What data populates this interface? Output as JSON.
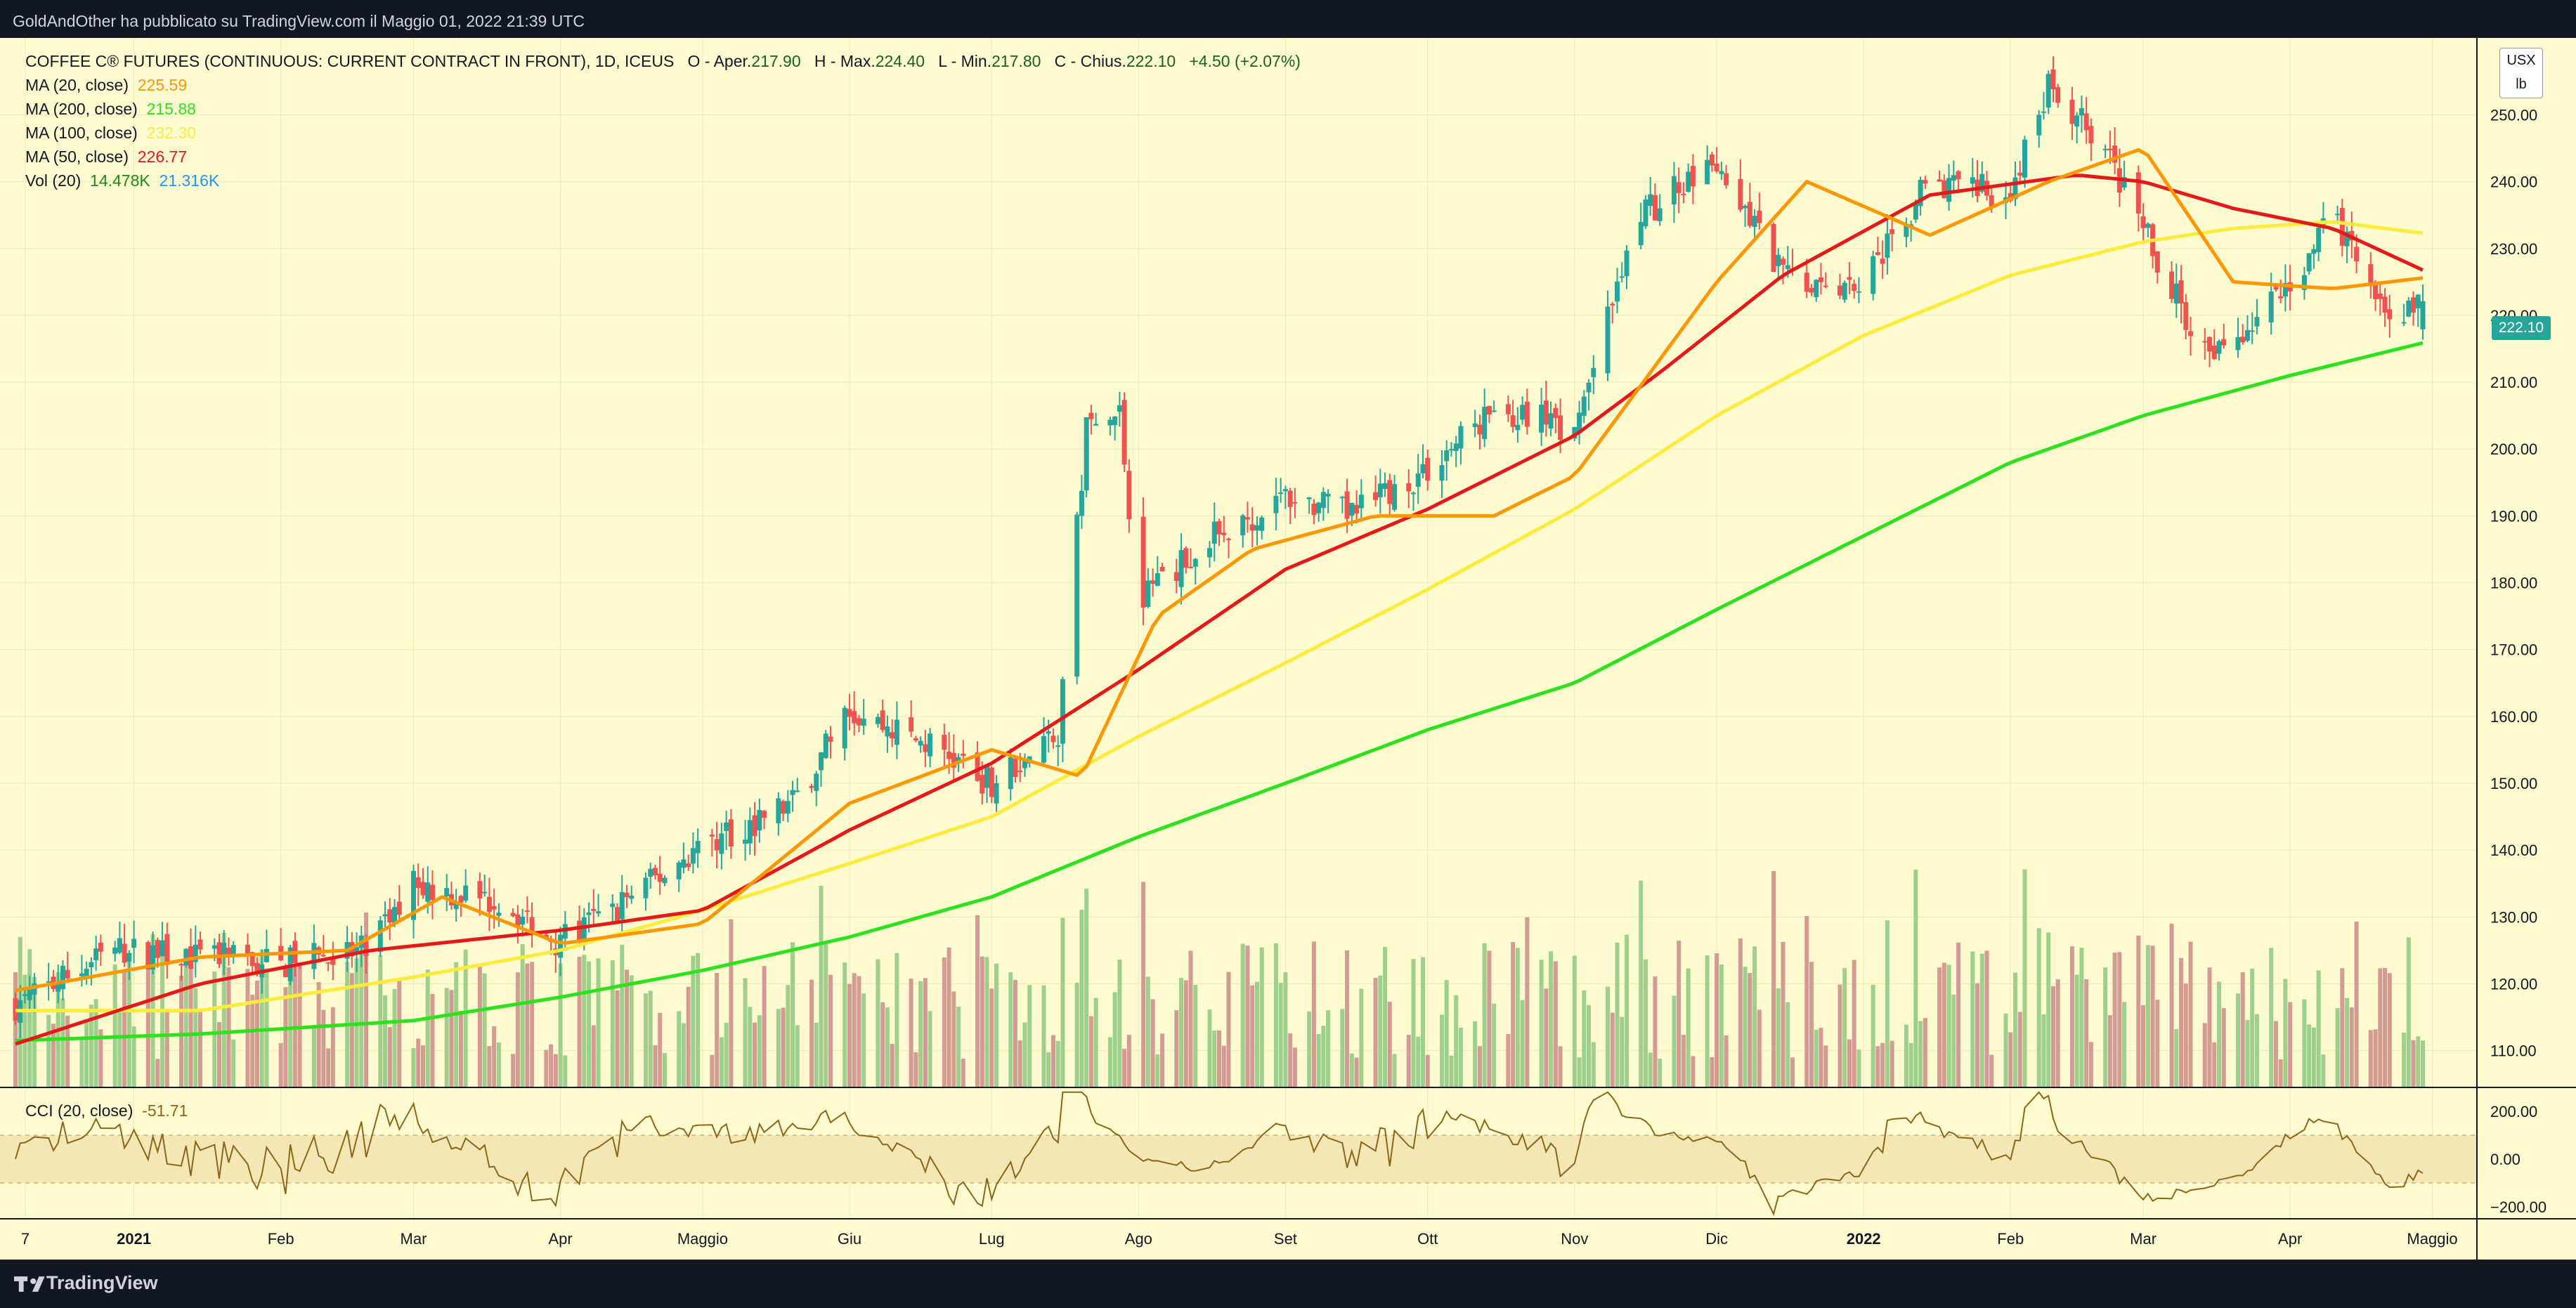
{
  "header": {
    "publisher_line": "GoldAndOther ha pubblicato su TradingView.com il Maggio 01, 2022 21:39 UTC"
  },
  "legend": {
    "symbol": "COFFEE C® FUTURES (CONTINUOUS: CURRENT CONTRACT IN FRONT), 1D, ICEUS",
    "open_label": "O - Aper.",
    "open": "217.90",
    "high_label": "H - Max.",
    "high": "224.40",
    "low_label": "L - Min.",
    "low": "217.80",
    "close_label": "C - Chius.",
    "close": "222.10",
    "change": "+4.50 (+2.07%)",
    "ma20_label": "MA (20, close)",
    "ma20": "225.59",
    "ma200_label": "MA (200, close)",
    "ma200": "215.88",
    "ma100_label": "MA (100, close)",
    "ma100": "232.30",
    "ma50_label": "MA (50, close)",
    "ma50": "226.77",
    "vol_label": "Vol (20)",
    "vol1": "14.478K",
    "vol2": "21.316K"
  },
  "cci": {
    "label": "CCI (20, close)",
    "value": "-51.71"
  },
  "unit": {
    "currency": "USX",
    "measure": "lb"
  },
  "price_tag": "222.10",
  "colors": {
    "background": "#fffbd1",
    "up": "#26a69a",
    "down": "#ef5350",
    "ma20": "#ff9800",
    "ma50": "#e21a1a",
    "ma100": "#ffeb3b",
    "ma200": "#2ee01e",
    "vol_up": "#9fcf8c",
    "vol_down": "#d39c93",
    "cci": "#8d6516"
  },
  "footer": {
    "brand": "TradingView"
  },
  "chart_data": {
    "type": "candlestick",
    "y_axis_ticks": [
      "110.00",
      "120.00",
      "130.00",
      "140.00",
      "150.00",
      "160.00",
      "170.00",
      "180.00",
      "190.00",
      "200.00",
      "210.00",
      "220.00",
      "230.00",
      "240.00",
      "250.00"
    ],
    "ylim": [
      104.5,
      261.5
    ],
    "x_axis_ticks": [
      "7",
      "2021",
      "Feb",
      "Mar",
      "Apr",
      "Maggio",
      "Giu",
      "Lug",
      "Ago",
      "Set",
      "Ott",
      "Nov",
      "Dic",
      "2022",
      "Feb",
      "Mar",
      "Apr",
      "Maggio"
    ],
    "cci_ticks": [
      "200.00",
      "0.00",
      "−200.00"
    ],
    "cci_range": [
      -250,
      300
    ],
    "price_anchors": {
      "x": [
        "2020-12-07",
        "2020-12-28",
        "2021-01-15",
        "2021-02-01",
        "2021-02-20",
        "2021-03-01",
        "2021-03-20",
        "2021-04-01",
        "2021-04-20",
        "2021-05-01",
        "2021-05-20",
        "2021-06-01",
        "2021-06-20",
        "2021-07-01",
        "2021-07-15",
        "2021-07-21",
        "2021-07-28",
        "2021-08-01",
        "2021-08-15",
        "2021-09-01",
        "2021-09-15",
        "2021-10-01",
        "2021-10-15",
        "2021-11-01",
        "2021-11-15",
        "2021-12-01",
        "2021-12-15",
        "2022-01-01",
        "2022-01-15",
        "2022-02-01",
        "2022-02-09",
        "2022-02-20",
        "2022-03-01",
        "2022-03-15",
        "2022-04-01",
        "2022-04-10",
        "2022-04-20",
        "2022-04-29"
      ],
      "y": [
        117,
        125,
        124,
        123,
        125,
        135,
        132,
        126,
        135,
        141,
        147,
        161,
        155,
        150,
        158,
        203,
        205,
        178,
        186,
        193,
        190,
        197,
        206,
        203,
        235,
        243,
        226,
        225,
        240,
        238,
        254,
        246,
        233,
        213,
        225,
        235,
        220,
        222
      ]
    },
    "ma20_anchors": {
      "x": [
        "2020-12-07",
        "2021-01-15",
        "2021-02-15",
        "2021-03-07",
        "2021-04-01",
        "2021-05-01",
        "2021-06-01",
        "2021-07-01",
        "2021-07-20",
        "2021-08-05",
        "2021-08-25",
        "2021-09-20",
        "2021-10-15",
        "2021-11-01",
        "2021-12-01",
        "2021-12-20",
        "2022-01-15",
        "2022-02-09",
        "2022-03-01",
        "2022-03-20",
        "2022-04-10",
        "2022-04-29"
      ],
      "y": [
        119,
        124,
        125,
        133,
        126,
        129,
        147,
        155,
        151,
        175,
        185,
        190,
        190,
        196,
        225,
        240,
        232,
        240,
        245,
        225,
        224,
        225.59
      ]
    },
    "ma50_anchors": {
      "x": [
        "2020-12-07",
        "2021-01-15",
        "2021-02-20",
        "2021-04-01",
        "2021-05-01",
        "2021-06-01",
        "2021-07-01",
        "2021-08-01",
        "2021-09-01",
        "2021-10-01",
        "2021-11-01",
        "2021-11-20",
        "2021-12-15",
        "2022-01-15",
        "2022-02-15",
        "2022-03-01",
        "2022-03-20",
        "2022-04-10",
        "2022-04-29"
      ],
      "y": [
        111,
        120,
        125,
        128,
        131,
        143,
        153,
        167,
        182,
        191,
        202,
        212,
        226,
        238,
        241,
        240,
        236,
        233,
        226.77
      ]
    },
    "ma100_anchors": {
      "x": [
        "2020-12-07",
        "2021-01-15",
        "2021-03-01",
        "2021-04-01",
        "2021-05-01",
        "2021-06-01",
        "2021-07-01",
        "2021-08-01",
        "2021-09-01",
        "2021-10-01",
        "2021-11-01",
        "2021-12-01",
        "2022-01-01",
        "2022-02-01",
        "2022-03-01",
        "2022-03-20",
        "2022-04-10",
        "2022-04-29"
      ],
      "y": [
        116,
        116,
        121,
        125,
        131,
        138,
        145,
        157,
        168,
        179,
        191,
        205,
        217,
        226,
        231,
        233,
        234,
        232.3
      ]
    },
    "ma200_anchors": {
      "x": [
        "2020-12-07",
        "2021-01-15",
        "2021-03-01",
        "2021-04-01",
        "2021-05-01",
        "2021-06-01",
        "2021-07-01",
        "2021-08-01",
        "2021-09-01",
        "2021-10-01",
        "2021-11-01",
        "2021-12-01",
        "2022-01-01",
        "2022-02-01",
        "2022-03-01",
        "2022-04-01",
        "2022-04-29"
      ],
      "y": [
        111.5,
        112.5,
        114.5,
        118,
        122,
        127,
        133,
        142,
        150,
        158,
        165,
        176,
        187,
        198,
        205,
        211,
        215.88
      ]
    }
  }
}
